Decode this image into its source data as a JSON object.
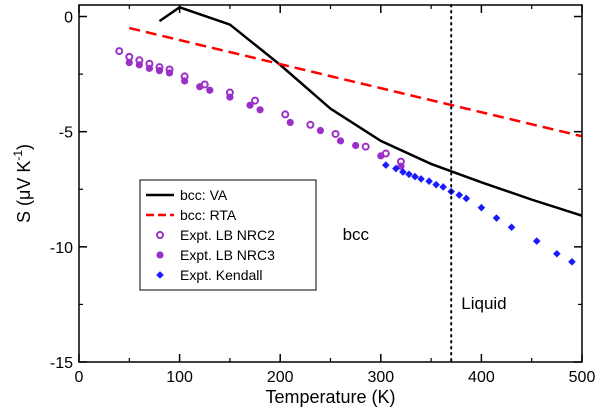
{
  "chart_data": {
    "type": "line",
    "xlabel": "Temperature (K)",
    "ylabel_parts": [
      "S (",
      "μ",
      "V K",
      "-1",
      ")"
    ],
    "xlim": [
      0,
      500
    ],
    "ylim": [
      -15,
      0.5
    ],
    "xticks": [
      0,
      100,
      200,
      300,
      400,
      500
    ],
    "yticks": [
      0,
      -5,
      -10,
      -15
    ],
    "xtick_labels": [
      "0",
      "100",
      "200",
      "300",
      "400",
      "500"
    ],
    "ytick_labels": [
      "0",
      "-5",
      "-10",
      "-15"
    ],
    "grid": false,
    "legend_placement": "center-left",
    "vline": {
      "x": 370,
      "style": "dotted",
      "color": "#000000"
    },
    "annotations": [
      {
        "text": "bcc",
        "x": 262,
        "y": -9.7
      },
      {
        "text": "Liquid",
        "x": 380,
        "y": -12.7
      }
    ],
    "series": [
      {
        "name": "bcc: VA",
        "kind": "line",
        "color": "#000000",
        "dash": "solid",
        "x": [
          80,
          100,
          150,
          200,
          250,
          300,
          350,
          400,
          450,
          500
        ],
        "y": [
          -0.2,
          0.4,
          -0.35,
          -2.1,
          -4.0,
          -5.4,
          -6.4,
          -7.2,
          -7.95,
          -8.65
        ]
      },
      {
        "name": "bcc: RTA",
        "kind": "line",
        "color": "#ff0000",
        "dash": "dashed",
        "x": [
          50,
          500
        ],
        "y": [
          -0.5,
          -5.2
        ]
      },
      {
        "name": "Expt. LB NRC2",
        "kind": "scatter",
        "marker": "open-circle",
        "color": "#9b30c8",
        "x": [
          40,
          50,
          60,
          70,
          80,
          90,
          105,
          125,
          150,
          175,
          205,
          230,
          255,
          285,
          305,
          320
        ],
        "y": [
          -1.5,
          -1.75,
          -1.9,
          -2.05,
          -2.2,
          -2.3,
          -2.6,
          -2.95,
          -3.3,
          -3.65,
          -4.25,
          -4.7,
          -5.1,
          -5.65,
          -5.95,
          -6.3
        ]
      },
      {
        "name": "Expt. LB NRC3",
        "kind": "scatter",
        "marker": "filled-circle",
        "color": "#9b30c8",
        "x": [
          50,
          60,
          70,
          80,
          90,
          105,
          120,
          130,
          150,
          170,
          180,
          210,
          240,
          260,
          275,
          300,
          320
        ],
        "y": [
          -2.0,
          -2.1,
          -2.25,
          -2.35,
          -2.45,
          -2.8,
          -3.05,
          -3.2,
          -3.5,
          -3.85,
          -4.05,
          -4.6,
          -4.95,
          -5.4,
          -5.6,
          -6.05,
          -6.5
        ]
      },
      {
        "name": "Expt. Kendall",
        "kind": "scatter",
        "marker": "filled-diamond",
        "color": "#1a1aff",
        "x": [
          305,
          315,
          322,
          328,
          334,
          340,
          348,
          355,
          362,
          370,
          378,
          385,
          400,
          415,
          430,
          455,
          475,
          490
        ],
        "y": [
          -6.45,
          -6.6,
          -6.75,
          -6.85,
          -6.95,
          -7.05,
          -7.15,
          -7.3,
          -7.4,
          -7.6,
          -7.75,
          -7.9,
          -8.3,
          -8.75,
          -9.15,
          -9.75,
          -10.3,
          -10.65
        ]
      }
    ]
  }
}
